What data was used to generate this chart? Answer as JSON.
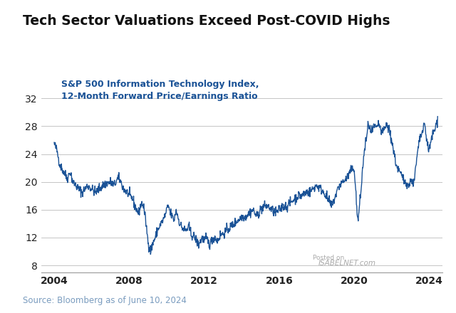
{
  "title": "Tech Sector Valuations Exceed Post-COVID Highs",
  "subtitle_line1": "S&P 500 Information Technology Index,",
  "subtitle_line2": "12-Month Forward Price/Earnings Ratio",
  "source": "Source: Bloomberg as of June 10, 2024",
  "watermark_line1": "Posted on",
  "watermark_line2": "ISABELNET.com",
  "line_color": "#1a5296",
  "title_color": "#111111",
  "subtitle_color": "#1a5296",
  "source_color": "#7a9cbf",
  "background_color": "#ffffff",
  "grid_color": "#bbbbbb",
  "yticks": [
    8,
    12,
    16,
    20,
    24,
    28,
    32
  ],
  "xticks": [
    2004,
    2008,
    2012,
    2016,
    2020,
    2024
  ],
  "ylim": [
    7.0,
    34.0
  ],
  "xlim_start": 2003.3,
  "xlim_end": 2024.7,
  "keypoints": [
    [
      2004.0,
      25.5
    ],
    [
      2004.15,
      24.5
    ],
    [
      2004.3,
      22.5
    ],
    [
      2004.5,
      21.5
    ],
    [
      2004.7,
      20.5
    ],
    [
      2004.85,
      21.5
    ],
    [
      2005.0,
      20.0
    ],
    [
      2005.15,
      19.5
    ],
    [
      2005.3,
      19.0
    ],
    [
      2005.5,
      18.5
    ],
    [
      2005.65,
      19.0
    ],
    [
      2005.8,
      19.5
    ],
    [
      2006.0,
      19.0
    ],
    [
      2006.2,
      18.5
    ],
    [
      2006.4,
      19.0
    ],
    [
      2006.6,
      19.5
    ],
    [
      2006.8,
      19.8
    ],
    [
      2007.0,
      20.0
    ],
    [
      2007.2,
      19.5
    ],
    [
      2007.4,
      20.5
    ],
    [
      2007.5,
      20.3
    ],
    [
      2007.7,
      19.0
    ],
    [
      2007.9,
      18.5
    ],
    [
      2008.0,
      18.0
    ],
    [
      2008.2,
      17.5
    ],
    [
      2008.3,
      16.5
    ],
    [
      2008.4,
      16.0
    ],
    [
      2008.5,
      15.5
    ],
    [
      2008.6,
      16.5
    ],
    [
      2008.7,
      17.0
    ],
    [
      2008.8,
      16.0
    ],
    [
      2008.9,
      14.0
    ],
    [
      2009.0,
      11.5
    ],
    [
      2009.1,
      10.5
    ],
    [
      2009.15,
      10.0
    ],
    [
      2009.2,
      10.5
    ],
    [
      2009.3,
      11.5
    ],
    [
      2009.4,
      12.0
    ],
    [
      2009.5,
      13.0
    ],
    [
      2009.6,
      13.5
    ],
    [
      2009.7,
      14.0
    ],
    [
      2009.8,
      14.5
    ],
    [
      2009.9,
      15.0
    ],
    [
      2010.0,
      16.0
    ],
    [
      2010.1,
      16.5
    ],
    [
      2010.2,
      15.5
    ],
    [
      2010.3,
      15.0
    ],
    [
      2010.4,
      14.5
    ],
    [
      2010.5,
      16.0
    ],
    [
      2010.6,
      15.0
    ],
    [
      2010.7,
      14.0
    ],
    [
      2010.8,
      13.5
    ],
    [
      2011.0,
      13.0
    ],
    [
      2011.2,
      13.5
    ],
    [
      2011.3,
      12.5
    ],
    [
      2011.5,
      12.0
    ],
    [
      2011.6,
      11.5
    ],
    [
      2011.7,
      11.0
    ],
    [
      2011.8,
      11.5
    ],
    [
      2011.9,
      12.0
    ],
    [
      2012.0,
      11.5
    ],
    [
      2012.1,
      12.0
    ],
    [
      2012.2,
      11.5
    ],
    [
      2012.3,
      11.0
    ],
    [
      2012.4,
      11.5
    ],
    [
      2012.5,
      12.0
    ],
    [
      2012.6,
      12.0
    ],
    [
      2012.7,
      11.5
    ],
    [
      2012.8,
      12.0
    ],
    [
      2012.9,
      12.5
    ],
    [
      2013.0,
      12.5
    ],
    [
      2013.2,
      13.0
    ],
    [
      2013.4,
      13.5
    ],
    [
      2013.6,
      14.0
    ],
    [
      2013.8,
      14.5
    ],
    [
      2014.0,
      15.0
    ],
    [
      2014.2,
      15.0
    ],
    [
      2014.4,
      15.5
    ],
    [
      2014.6,
      16.0
    ],
    [
      2014.7,
      15.5
    ],
    [
      2014.8,
      15.0
    ],
    [
      2015.0,
      16.0
    ],
    [
      2015.2,
      16.5
    ],
    [
      2015.4,
      16.5
    ],
    [
      2015.6,
      16.0
    ],
    [
      2015.8,
      15.5
    ],
    [
      2016.0,
      16.0
    ],
    [
      2016.2,
      16.5
    ],
    [
      2016.4,
      16.5
    ],
    [
      2016.6,
      17.0
    ],
    [
      2016.8,
      17.5
    ],
    [
      2017.0,
      18.0
    ],
    [
      2017.2,
      18.0
    ],
    [
      2017.4,
      18.5
    ],
    [
      2017.6,
      18.5
    ],
    [
      2017.8,
      19.0
    ],
    [
      2018.0,
      19.5
    ],
    [
      2018.2,
      19.0
    ],
    [
      2018.4,
      18.5
    ],
    [
      2018.6,
      17.5
    ],
    [
      2018.8,
      16.5
    ],
    [
      2019.0,
      18.0
    ],
    [
      2019.2,
      19.5
    ],
    [
      2019.4,
      20.0
    ],
    [
      2019.6,
      20.5
    ],
    [
      2019.8,
      21.5
    ],
    [
      2020.0,
      22.0
    ],
    [
      2020.05,
      20.0
    ],
    [
      2020.1,
      18.0
    ],
    [
      2020.15,
      15.5
    ],
    [
      2020.2,
      14.5
    ],
    [
      2020.25,
      15.5
    ],
    [
      2020.3,
      17.0
    ],
    [
      2020.4,
      20.0
    ],
    [
      2020.5,
      23.5
    ],
    [
      2020.6,
      25.5
    ],
    [
      2020.7,
      27.0
    ],
    [
      2020.75,
      28.5
    ],
    [
      2020.8,
      28.0
    ],
    [
      2020.9,
      27.0
    ],
    [
      2021.0,
      27.5
    ],
    [
      2021.1,
      28.0
    ],
    [
      2021.2,
      27.5
    ],
    [
      2021.3,
      28.5
    ],
    [
      2021.4,
      27.5
    ],
    [
      2021.5,
      27.0
    ],
    [
      2021.6,
      27.5
    ],
    [
      2021.7,
      28.0
    ],
    [
      2021.75,
      28.5
    ],
    [
      2021.8,
      27.5
    ],
    [
      2021.85,
      28.0
    ],
    [
      2021.9,
      27.0
    ],
    [
      2022.0,
      26.0
    ],
    [
      2022.1,
      24.5
    ],
    [
      2022.2,
      23.0
    ],
    [
      2022.3,
      22.0
    ],
    [
      2022.4,
      21.5
    ],
    [
      2022.5,
      21.0
    ],
    [
      2022.6,
      20.5
    ],
    [
      2022.7,
      20.0
    ],
    [
      2022.8,
      20.0
    ],
    [
      2022.85,
      19.5
    ],
    [
      2022.9,
      19.5
    ],
    [
      2023.0,
      20.0
    ],
    [
      2023.1,
      20.5
    ],
    [
      2023.15,
      19.5
    ],
    [
      2023.2,
      20.0
    ],
    [
      2023.3,
      22.5
    ],
    [
      2023.4,
      24.5
    ],
    [
      2023.45,
      25.5
    ],
    [
      2023.5,
      26.0
    ],
    [
      2023.6,
      27.0
    ],
    [
      2023.7,
      27.5
    ],
    [
      2023.75,
      28.5
    ],
    [
      2023.8,
      27.5
    ],
    [
      2023.85,
      26.5
    ],
    [
      2023.9,
      25.5
    ],
    [
      2024.0,
      24.5
    ],
    [
      2024.05,
      25.0
    ],
    [
      2024.1,
      26.0
    ],
    [
      2024.2,
      27.0
    ],
    [
      2024.3,
      27.5
    ],
    [
      2024.35,
      28.0
    ],
    [
      2024.4,
      28.5
    ],
    [
      2024.45,
      29.0
    ]
  ]
}
